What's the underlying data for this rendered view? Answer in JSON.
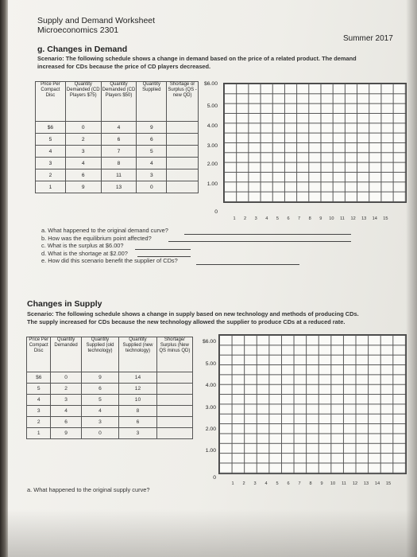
{
  "header": {
    "title": "Supply and Demand Worksheet",
    "course": "Microeconomics 2301",
    "term": "Summer 2017"
  },
  "demand_section": {
    "heading": "g.  Changes in Demand",
    "scenario_line1": "Scenario: The following schedule shows a change in demand based on the price of a related product. The demand",
    "scenario_line2": "increased for CDs because the price of CD players decreased.",
    "table": {
      "headers": [
        "Price Per Compact Disc",
        "Quantity Demanded (CD Players $75)",
        "Quantity Demanded (CD Players $50)",
        "Quantity Supplied",
        "Shortage or Surplus (QS - new QD)"
      ],
      "rows": [
        [
          "$6",
          "0",
          "4",
          "9",
          ""
        ],
        [
          "5",
          "2",
          "6",
          "6",
          ""
        ],
        [
          "4",
          "3",
          "7",
          "5",
          ""
        ],
        [
          "3",
          "4",
          "8",
          "4",
          ""
        ],
        [
          "2",
          "6",
          "11",
          "3",
          ""
        ],
        [
          "1",
          "9",
          "13",
          "0",
          ""
        ]
      ]
    },
    "graph": {
      "y_labels": [
        "$6.00",
        "5.00",
        "4.00",
        "3.00",
        "2.00",
        "1.00",
        "0"
      ],
      "x_labels": [
        "1",
        "2",
        "3",
        "4",
        "5",
        "6",
        "7",
        "8",
        "9",
        "10",
        "11",
        "12",
        "13",
        "14",
        "15"
      ]
    },
    "questions": [
      "a.   What happened to the original demand curve?",
      "b.   How was the equilibrium point affected?",
      "c.   What is the surplus at $6.00?",
      "d.   What is the shortage at $2.00?",
      "e.   How did this scenario benefit the supplier of CDs?"
    ]
  },
  "supply_section": {
    "heading": "Changes in Supply",
    "scenario_line1": "Scenario: The following schedule shows a change in supply based on new technology and methods of producing CDs.",
    "scenario_line2": "The supply increased for CDs because the new technology allowed the supplier to produce CDs at a reduced rate.",
    "table": {
      "headers": [
        "Price Per Compact Disc",
        "Quantity Demanded",
        "Quantity Supplied (old technology)",
        "Quantity Supplied (new technology)",
        "Shortage/ Surplus (New QS minus QD)"
      ],
      "rows": [
        [
          "$6",
          "0",
          "9",
          "14",
          ""
        ],
        [
          "5",
          "2",
          "6",
          "12",
          ""
        ],
        [
          "4",
          "3",
          "5",
          "10",
          ""
        ],
        [
          "3",
          "4",
          "4",
          "8",
          ""
        ],
        [
          "2",
          "6",
          "3",
          "6",
          ""
        ],
        [
          "1",
          "9",
          "0",
          "3",
          ""
        ]
      ]
    },
    "graph": {
      "y_labels": [
        "$6.00",
        "5.00",
        "4.00",
        "3.00",
        "2.00",
        "1.00",
        "0"
      ],
      "x_labels": [
        "1",
        "2",
        "3",
        "4",
        "5",
        "6",
        "7",
        "8",
        "9",
        "10",
        "11",
        "12",
        "13",
        "14",
        "15"
      ]
    },
    "questions": [
      "a.   What happened to the original supply curve?"
    ]
  }
}
